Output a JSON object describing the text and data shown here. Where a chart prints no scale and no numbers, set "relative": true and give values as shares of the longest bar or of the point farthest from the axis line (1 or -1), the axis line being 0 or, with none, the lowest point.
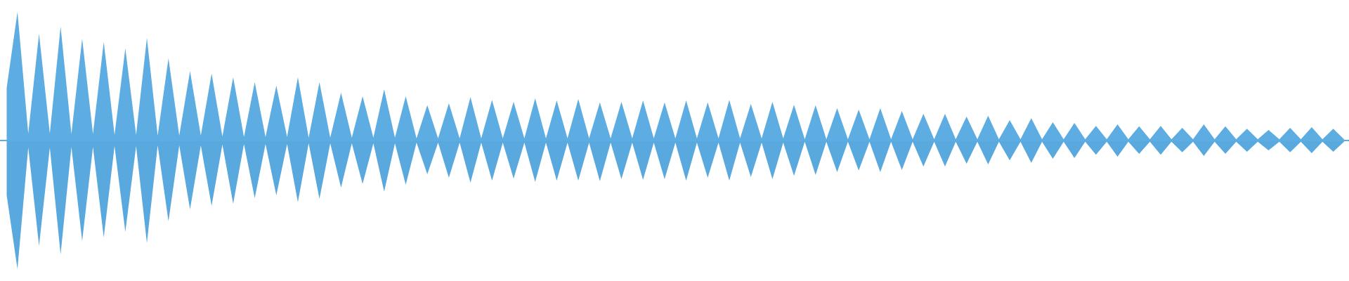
{
  "chart_data": {
    "type": "area",
    "relative": true,
    "categories": [
      null,
      null,
      null,
      null,
      null,
      null,
      null,
      null,
      null,
      null,
      null,
      null,
      null,
      null,
      null,
      null,
      null,
      null,
      null,
      null,
      null,
      null,
      null,
      null,
      null,
      null,
      null,
      null,
      null,
      null,
      null,
      null,
      null,
      null,
      null,
      null,
      null,
      null,
      null,
      null,
      null,
      null,
      null,
      null,
      null,
      null,
      null,
      null,
      null,
      null,
      null,
      null,
      null,
      null,
      null,
      null,
      null,
      null,
      null,
      null,
      null,
      null,
      null,
      null,
      null,
      null,
      null,
      null,
      null,
      null,
      null,
      null,
      null,
      null,
      null,
      null,
      null,
      null,
      null,
      null,
      null,
      null,
      null,
      null,
      null,
      null,
      null,
      null,
      null,
      null,
      null,
      null,
      null,
      null,
      null,
      null,
      null,
      null,
      null,
      null,
      null,
      null,
      null,
      null,
      null,
      null,
      null,
      null,
      null,
      null,
      null,
      null,
      null,
      null,
      null,
      null,
      null,
      null,
      null,
      null,
      null,
      null,
      null,
      null,
      null
    ],
    "series": [
      {
        "color": "#5dade2",
        "values": [
          0.41,
          1.0,
          0.054,
          0.83,
          0.054,
          0.886,
          0.05,
          0.792,
          0.05,
          0.766,
          0.044,
          0.716,
          0.044,
          0.798,
          0.038,
          0.64,
          0.038,
          0.54,
          0.038,
          0.52,
          0.032,
          0.492,
          0.028,
          0.454,
          0.028,
          0.426,
          0.028,
          0.492,
          0.022,
          0.454,
          0.022,
          0.372,
          0.022,
          0.344,
          0.022,
          0.398,
          0.022,
          0.344,
          0.016,
          0.274,
          0.016,
          0.29,
          0.016,
          0.338,
          0.016,
          0.316,
          0.016,
          0.3,
          0.016,
          0.328,
          0.016,
          0.312,
          0.016,
          0.322,
          0.016,
          0.296,
          0.016,
          0.3,
          0.016,
          0.312,
          0.016,
          0.296,
          0.016,
          0.312,
          0.016,
          0.296,
          0.016,
          0.316,
          0.016,
          0.284,
          0.016,
          0.3,
          0.016,
          0.278,
          0.01,
          0.274,
          0.01,
          0.252,
          0.01,
          0.24,
          0.01,
          0.252,
          0.01,
          0.23,
          0.01,
          0.208,
          0.01,
          0.208,
          0.01,
          0.186,
          0.01,
          0.192,
          0.01,
          0.158,
          0.01,
          0.174,
          0.01,
          0.142,
          0.01,
          0.136,
          0.01,
          0.114,
          0.01,
          0.126,
          0.01,
          0.11,
          0.01,
          0.114,
          0.01,
          0.098,
          0.01,
          0.126,
          0.01,
          0.11,
          0.01,
          0.092,
          0.01,
          0.082,
          0.01,
          0.098,
          0.01,
          0.104,
          0.01,
          0.092,
          0.01
        ]
      },
      {
        "color": "#5aa9de",
        "values": [
          -0.426,
          -1.0,
          -0.054,
          -0.82,
          -0.054,
          -0.886,
          -0.05,
          -0.782,
          -0.05,
          -0.754,
          -0.044,
          -0.71,
          -0.044,
          -0.798,
          -0.038,
          -0.628,
          -0.038,
          -0.536,
          -0.038,
          -0.508,
          -0.032,
          -0.492,
          -0.028,
          -0.448,
          -0.028,
          -0.426,
          -0.028,
          -0.48,
          -0.022,
          -0.454,
          -0.022,
          -0.366,
          -0.022,
          -0.338,
          -0.022,
          -0.398,
          -0.022,
          -0.344,
          -0.016,
          -0.262,
          -0.016,
          -0.29,
          -0.016,
          -0.328,
          -0.016,
          -0.312,
          -0.016,
          -0.296,
          -0.016,
          -0.322,
          -0.016,
          -0.312,
          -0.016,
          -0.312,
          -0.016,
          -0.316,
          -0.016,
          -0.3,
          -0.016,
          -0.306,
          -0.016,
          -0.3,
          -0.016,
          -0.312,
          -0.016,
          -0.29,
          -0.016,
          -0.312,
          -0.016,
          -0.284,
          -0.016,
          -0.3,
          -0.016,
          -0.274,
          -0.01,
          -0.268,
          -0.01,
          -0.246,
          -0.01,
          -0.234,
          -0.01,
          -0.246,
          -0.01,
          -0.23,
          -0.01,
          -0.202,
          -0.01,
          -0.202,
          -0.01,
          -0.18,
          -0.01,
          -0.186,
          -0.01,
          -0.154,
          -0.01,
          -0.174,
          -0.01,
          -0.142,
          -0.01,
          -0.136,
          -0.01,
          -0.11,
          -0.01,
          -0.126,
          -0.01,
          -0.104,
          -0.01,
          -0.11,
          -0.01,
          -0.092,
          -0.01,
          -0.12,
          -0.01,
          -0.104,
          -0.01,
          -0.088,
          -0.01,
          -0.076,
          -0.01,
          -0.092,
          -0.01,
          -0.098,
          -0.01,
          -0.088,
          -0.01
        ]
      }
    ],
    "ref_lines": [
      {
        "axis": "y",
        "value": 0,
        "color": "#5dade2"
      }
    ]
  }
}
